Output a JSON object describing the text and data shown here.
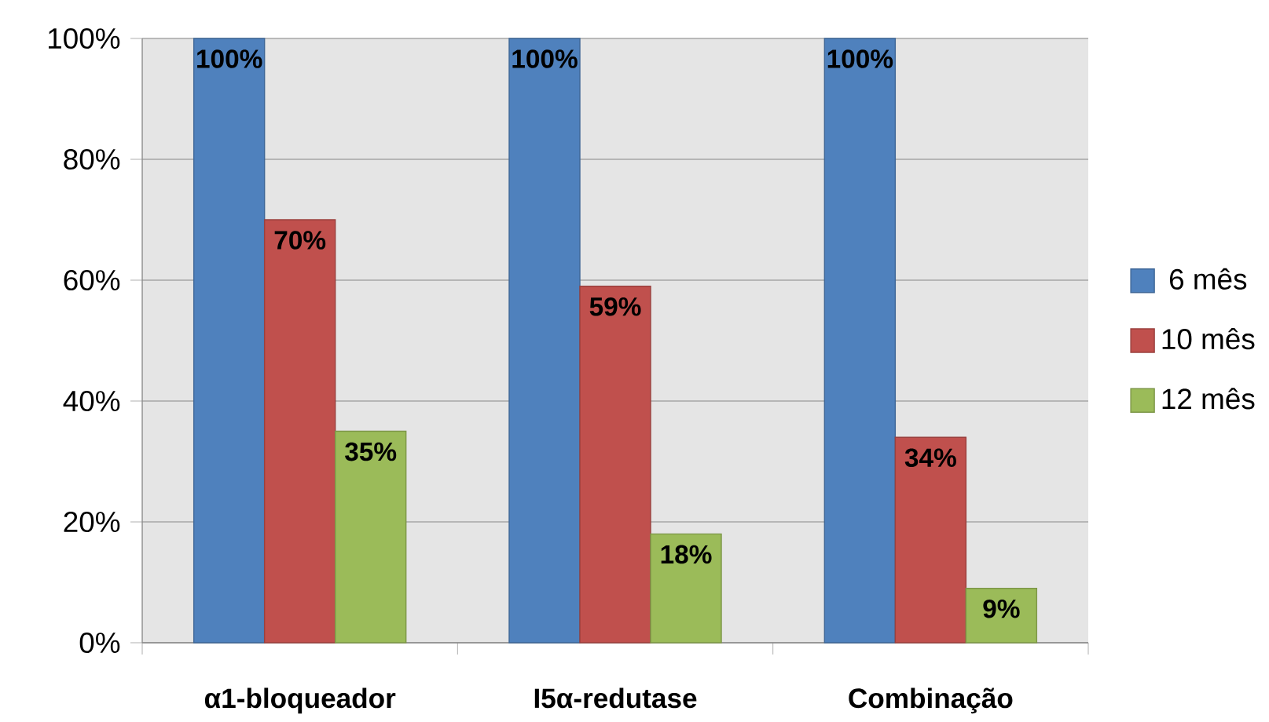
{
  "chart_data": {
    "type": "bar",
    "categories": [
      "α1-bloqueador",
      "I5α-redutase",
      "Combinação"
    ],
    "series": [
      {
        "name": "6 mês",
        "color": "#4f81bd",
        "values": [
          100,
          100,
          100
        ],
        "value_labels": [
          "100%",
          "100%",
          "100%"
        ]
      },
      {
        "name": "10 mês",
        "color": "#c0504d",
        "values": [
          70,
          59,
          34
        ],
        "value_labels": [
          "70%",
          "59%",
          "34%"
        ]
      },
      {
        "name": "12 mês",
        "color": "#9bbb59",
        "values": [
          35,
          18,
          9
        ],
        "value_labels": [
          "35%",
          "18%",
          "9%"
        ]
      }
    ],
    "ylim": [
      0,
      100
    ],
    "yticks": [
      {
        "value": 0,
        "label": "0%"
      },
      {
        "value": 20,
        "label": "20%"
      },
      {
        "value": 40,
        "label": "40%"
      },
      {
        "value": 60,
        "label": "60%"
      },
      {
        "value": 80,
        "label": "80%"
      },
      {
        "value": 100,
        "label": "100%"
      }
    ],
    "grid": "y",
    "legend": "right"
  }
}
